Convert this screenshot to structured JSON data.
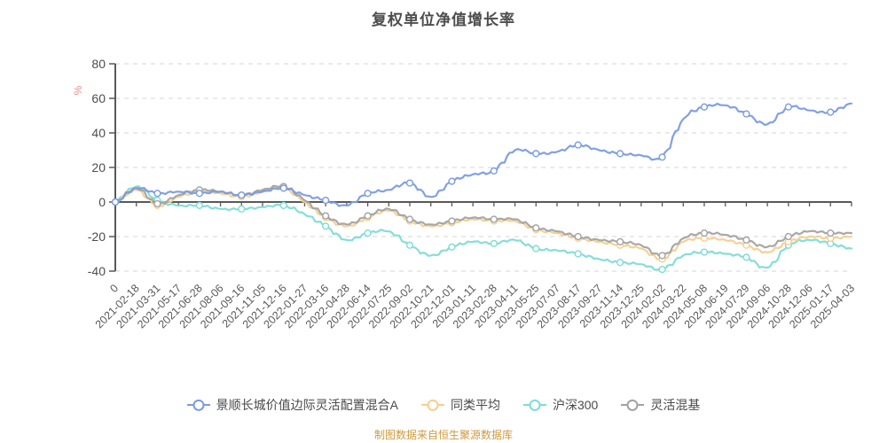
{
  "title": "复权单位净值增长率",
  "footer": "制图数据来自恒生聚源数据库",
  "colors": {
    "axis": "#595959",
    "grid": "#d6d6d6",
    "tick_label": "#4d4d4d",
    "x_label": "#595959",
    "y_unit_label": "#e98c8c",
    "title_text": "#4d4d4d",
    "legend_text": "#4a4a4a",
    "footer_text": "#cf9a3e",
    "background": "#ffffff"
  },
  "chart_data": {
    "type": "line",
    "title": "复权单位净值增长率",
    "xlabel": "",
    "ylabel": "%",
    "ylim": [
      -40,
      80
    ],
    "y_ticks": [
      80,
      60,
      40,
      20,
      0,
      -20,
      -40
    ],
    "grid": "horizontal dashed",
    "legend_position": "bottom",
    "x_label_rotate": 45,
    "marker": "hollow-circle",
    "categories": [
      "0",
      "2021-02-18",
      "2021-03-31",
      "2021-05-17",
      "2021-06-28",
      "2021-08-06",
      "2021-09-16",
      "2021-11-05",
      "2021-12-16",
      "2022-01-27",
      "2022-03-16",
      "2022-04-28",
      "2022-06-14",
      "2022-07-25",
      "2022-09-02",
      "2022-10-21",
      "2022-12-01",
      "2023-01-11",
      "2023-02-28",
      "2023-04-11",
      "2023-05-25",
      "2023-07-07",
      "2023-08-17",
      "2023-09-27",
      "2023-11-14",
      "2023-12-25",
      "2024-02-02",
      "2024-03-22",
      "2024-05-08",
      "2024-06-19",
      "2024-07-29",
      "2024-09-06",
      "2024-10-28",
      "2024-12-06",
      "2025-01-17",
      "2025-04-03"
    ],
    "series": [
      {
        "name": "景顺长城价值边际灵活配置混合A",
        "color": "#7b9ce1",
        "values": [
          0,
          8,
          5,
          6,
          5,
          6,
          4,
          6,
          8,
          4,
          1,
          -2,
          5,
          7,
          11,
          3,
          12,
          16,
          18,
          30,
          28,
          29,
          33,
          30,
          28,
          27,
          26,
          48,
          55,
          56,
          51,
          45,
          55,
          53,
          52,
          57
        ]
      },
      {
        "name": "同类平均",
        "color": "#f6cf8d",
        "values": [
          0,
          7,
          -2,
          3,
          6,
          5,
          3,
          6,
          8,
          0,
          -9,
          -14,
          -9,
          -5,
          -11,
          -14,
          -12,
          -10,
          -11,
          -11,
          -16,
          -18,
          -21,
          -23,
          -25,
          -27,
          -33,
          -23,
          -21,
          -22,
          -25,
          -29,
          -23,
          -20,
          -21,
          -20
        ]
      },
      {
        "name": "沪深300",
        "color": "#7edcd6",
        "values": [
          0,
          9,
          1,
          -2,
          -2,
          -4,
          -4,
          -3,
          -2,
          -7,
          -14,
          -22,
          -18,
          -17,
          -25,
          -31,
          -26,
          -23,
          -24,
          -22,
          -27,
          -28,
          -30,
          -33,
          -35,
          -36,
          -39,
          -31,
          -29,
          -30,
          -32,
          -38,
          -25,
          -22,
          -24,
          -27
        ]
      },
      {
        "name": "灵活混基",
        "color": "#a3a3a3",
        "values": [
          0,
          8,
          -1,
          4,
          7,
          6,
          4,
          7,
          9,
          1,
          -8,
          -13,
          -8,
          -4,
          -10,
          -13,
          -11,
          -9,
          -10,
          -10,
          -15,
          -17,
          -20,
          -22,
          -23,
          -25,
          -31,
          -21,
          -18,
          -19,
          -22,
          -26,
          -20,
          -17,
          -18,
          -18
        ]
      }
    ]
  }
}
